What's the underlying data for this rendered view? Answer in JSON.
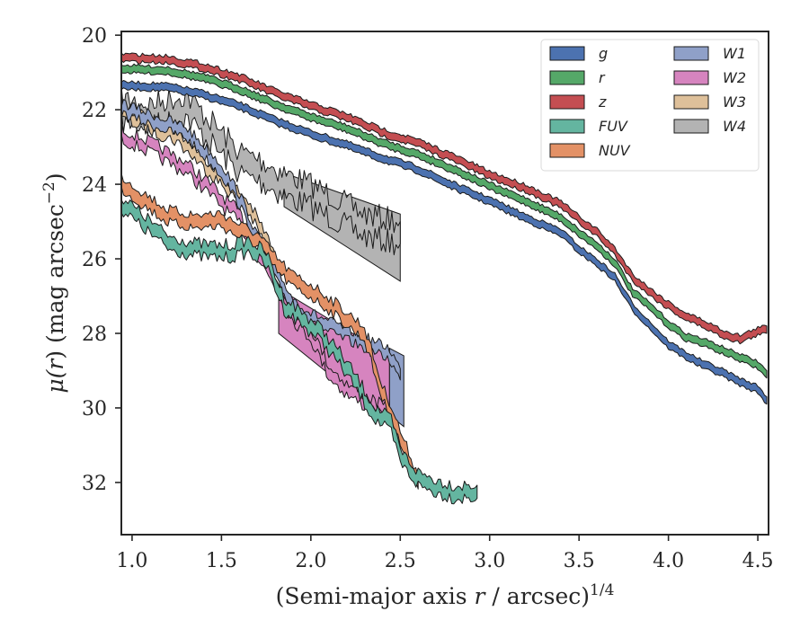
{
  "chart_data": {
    "type": "area",
    "xlabel": "(Semi-major axis r / arcsec)^1/4",
    "xlabel_parts": {
      "pre": "(Semi-major axis ",
      "var": "r",
      "mid": " / arcsec)",
      "sup": "1/4"
    },
    "ylabel": "μ(r) (mag arcsec^-2)",
    "ylabel_parts": {
      "mu": "μ(",
      "var": "r",
      "mid": ") (mag arcsec",
      "sup": "−2",
      "end": ")"
    },
    "xlim": [
      0.94,
      4.56
    ],
    "ylim": [
      33.4,
      19.9
    ],
    "y_inverted": true,
    "xticks": [
      1.0,
      1.5,
      2.0,
      2.5,
      3.0,
      3.5,
      4.0,
      4.5
    ],
    "xtick_labels": [
      "1.0",
      "1.5",
      "2.0",
      "2.5",
      "3.0",
      "3.5",
      "4.0",
      "4.5"
    ],
    "yticks": [
      20,
      22,
      24,
      26,
      28,
      30,
      32
    ],
    "ytick_labels": [
      "20",
      "22",
      "24",
      "26",
      "28",
      "30",
      "32"
    ],
    "grid": false,
    "legend_position": "top-right",
    "legend_columns": 2,
    "series": [
      {
        "name": "g",
        "color": "#4c72b0",
        "band_width": 0.2,
        "points": [
          [
            0.94,
            21.35
          ],
          [
            1.2,
            21.4
          ],
          [
            1.4,
            21.6
          ],
          [
            1.6,
            21.9
          ],
          [
            1.8,
            22.3
          ],
          [
            2.0,
            22.65
          ],
          [
            2.2,
            22.95
          ],
          [
            2.4,
            23.3
          ],
          [
            2.6,
            23.6
          ],
          [
            2.8,
            24.05
          ],
          [
            3.0,
            24.45
          ],
          [
            3.2,
            24.9
          ],
          [
            3.4,
            25.3
          ],
          [
            3.5,
            25.75
          ],
          [
            3.6,
            26.1
          ],
          [
            3.7,
            26.5
          ],
          [
            3.8,
            27.3
          ],
          [
            3.9,
            27.8
          ],
          [
            4.0,
            28.3
          ],
          [
            4.1,
            28.6
          ],
          [
            4.2,
            28.85
          ],
          [
            4.3,
            29.05
          ],
          [
            4.4,
            29.3
          ],
          [
            4.5,
            29.5
          ],
          [
            4.55,
            29.8
          ]
        ]
      },
      {
        "name": "r",
        "color": "#55a868",
        "band_width": 0.2,
        "points": [
          [
            0.94,
            20.9
          ],
          [
            1.2,
            20.95
          ],
          [
            1.4,
            21.15
          ],
          [
            1.6,
            21.45
          ],
          [
            1.8,
            21.85
          ],
          [
            2.0,
            22.2
          ],
          [
            2.2,
            22.5
          ],
          [
            2.4,
            22.9
          ],
          [
            2.6,
            23.2
          ],
          [
            2.8,
            23.6
          ],
          [
            3.0,
            24.05
          ],
          [
            3.2,
            24.45
          ],
          [
            3.4,
            24.9
          ],
          [
            3.5,
            25.3
          ],
          [
            3.6,
            25.65
          ],
          [
            3.7,
            26.1
          ],
          [
            3.8,
            26.9
          ],
          [
            3.9,
            27.3
          ],
          [
            4.0,
            27.75
          ],
          [
            4.1,
            28.1
          ],
          [
            4.2,
            28.25
          ],
          [
            4.3,
            28.45
          ],
          [
            4.4,
            28.65
          ],
          [
            4.5,
            28.85
          ],
          [
            4.55,
            29.1
          ]
        ]
      },
      {
        "name": "z",
        "color": "#c44e52",
        "band_width": 0.2,
        "points": [
          [
            0.94,
            20.6
          ],
          [
            1.2,
            20.65
          ],
          [
            1.4,
            20.85
          ],
          [
            1.6,
            21.15
          ],
          [
            1.8,
            21.55
          ],
          [
            2.0,
            21.9
          ],
          [
            2.2,
            22.2
          ],
          [
            2.4,
            22.6
          ],
          [
            2.6,
            22.9
          ],
          [
            2.8,
            23.3
          ],
          [
            3.0,
            23.75
          ],
          [
            3.2,
            24.1
          ],
          [
            3.4,
            24.55
          ],
          [
            3.5,
            24.95
          ],
          [
            3.6,
            25.3
          ],
          [
            3.7,
            25.8
          ],
          [
            3.8,
            26.5
          ],
          [
            3.9,
            26.9
          ],
          [
            4.0,
            27.25
          ],
          [
            4.1,
            27.55
          ],
          [
            4.2,
            27.75
          ],
          [
            4.3,
            28.0
          ],
          [
            4.4,
            28.15
          ],
          [
            4.5,
            27.95
          ],
          [
            4.55,
            27.9
          ]
        ]
      },
      {
        "name": "FUV",
        "color": "#64b5a0",
        "band_width": 0.35,
        "points": [
          [
            0.94,
            24.5
          ],
          [
            1.05,
            24.95
          ],
          [
            1.2,
            25.55
          ],
          [
            1.35,
            25.75
          ],
          [
            1.45,
            25.8
          ],
          [
            1.55,
            25.8
          ],
          [
            1.65,
            25.65
          ],
          [
            1.75,
            26.0
          ],
          [
            1.85,
            27.2
          ],
          [
            1.95,
            27.6
          ],
          [
            2.05,
            28.0
          ],
          [
            2.15,
            28.6
          ],
          [
            2.25,
            29.3
          ],
          [
            2.35,
            30.1
          ],
          [
            2.45,
            30.5
          ],
          [
            2.5,
            31.3
          ],
          [
            2.6,
            31.9
          ],
          [
            2.7,
            32.1
          ],
          [
            2.8,
            32.25
          ],
          [
            2.93,
            32.25
          ]
        ]
      },
      {
        "name": "NUV",
        "color": "#e39166",
        "band_width": 0.35,
        "points": [
          [
            0.94,
            23.95
          ],
          [
            1.05,
            24.35
          ],
          [
            1.2,
            24.85
          ],
          [
            1.35,
            25.0
          ],
          [
            1.5,
            24.95
          ],
          [
            1.6,
            25.25
          ],
          [
            1.7,
            25.5
          ],
          [
            1.8,
            26.1
          ],
          [
            1.9,
            26.6
          ],
          [
            2.0,
            26.85
          ],
          [
            2.1,
            27.2
          ],
          [
            2.2,
            27.6
          ],
          [
            2.3,
            28.0
          ],
          [
            2.4,
            29.6
          ],
          [
            2.45,
            30.1
          ],
          [
            2.5,
            30.8
          ],
          [
            2.56,
            31.5
          ],
          [
            2.6,
            32.0
          ]
        ]
      },
      {
        "name": "W1",
        "color": "#8fa0c8",
        "band_width": 0.3,
        "points": [
          [
            0.94,
            21.95
          ],
          [
            1.1,
            22.25
          ],
          [
            1.3,
            22.6
          ],
          [
            1.5,
            23.6
          ],
          [
            1.6,
            24.4
          ],
          [
            1.7,
            25.5
          ],
          [
            1.8,
            26.4
          ],
          [
            1.9,
            27.2
          ],
          [
            2.0,
            27.6
          ],
          [
            2.44,
            28.55
          ],
          [
            2.5,
            29.1
          ]
        ]
      },
      {
        "name": "W2",
        "color": "#d684bf",
        "band_width": 0.3,
        "points": [
          [
            0.94,
            22.65
          ],
          [
            1.1,
            23.0
          ],
          [
            1.3,
            23.55
          ],
          [
            1.45,
            24.2
          ],
          [
            1.6,
            24.9
          ],
          [
            1.7,
            25.8
          ],
          [
            1.8,
            26.6
          ],
          [
            1.9,
            27.5
          ],
          [
            2.0,
            28.0
          ],
          [
            2.1,
            29.0
          ],
          [
            2.2,
            29.5
          ],
          [
            2.3,
            29.8
          ],
          [
            2.44,
            30.2
          ]
        ]
      },
      {
        "name": "W3",
        "color": "#dec09a",
        "band_width": 0.3,
        "points": [
          [
            0.94,
            22.1
          ],
          [
            1.1,
            22.4
          ],
          [
            1.25,
            22.7
          ],
          [
            1.4,
            23.4
          ],
          [
            1.55,
            24.1
          ],
          [
            1.65,
            24.6
          ],
          [
            1.75,
            25.5
          ],
          [
            1.8,
            26.0
          ]
        ]
      },
      {
        "name": "W4",
        "color": "#b3b3b3",
        "band_width": 0.6,
        "points": [
          [
            0.94,
            22.0
          ],
          [
            1.1,
            22.15
          ],
          [
            1.3,
            21.9
          ],
          [
            1.4,
            22.4
          ],
          [
            1.5,
            22.9
          ],
          [
            1.6,
            23.4
          ],
          [
            1.7,
            23.6
          ],
          [
            1.85,
            24.0
          ],
          [
            2.0,
            24.3
          ],
          [
            2.15,
            24.7
          ],
          [
            2.3,
            25.1
          ],
          [
            2.5,
            25.3
          ]
        ]
      }
    ],
    "transition_bands": [
      {
        "name": "W2",
        "color": "#d684bf",
        "from": [
          1.82,
          26.8,
          28.0
        ],
        "to": [
          2.44,
          28.6,
          30.4
        ]
      },
      {
        "name": "W1",
        "color": "#8fa0c8",
        "from": [
          2.44,
          28.4,
          30.2
        ],
        "to": [
          2.52,
          28.6,
          30.5
        ]
      },
      {
        "name": "W4",
        "color": "#b3b3b3",
        "from": [
          1.85,
          23.7,
          24.6
        ],
        "to": [
          2.5,
          24.8,
          26.6
        ]
      }
    ]
  }
}
